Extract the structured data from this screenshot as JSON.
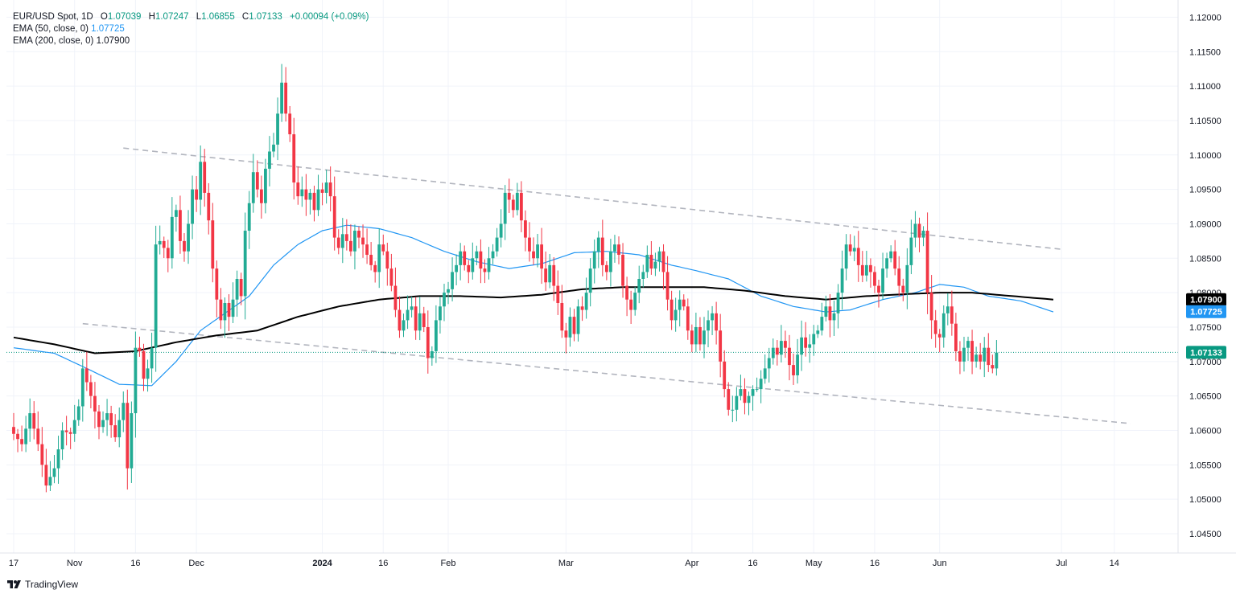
{
  "header": {
    "symbol": "EUR/USD Spot, 1D",
    "ohlc": {
      "open_label": "O",
      "open": "1.07039",
      "high_label": "H",
      "high": "1.07247",
      "low_label": "L",
      "low": "1.06855",
      "close_label": "C",
      "close": "1.07133",
      "change": "+0.00094 (+0.09%)"
    },
    "ema50_label": "EMA (50, close, 0)",
    "ema50_value": "1.07725",
    "ema200_label": "EMA (200, close, 0)",
    "ema200_value": "1.07900"
  },
  "brand": {
    "name": "TradingView"
  },
  "colors": {
    "up": "#22ab94",
    "down": "#f23645",
    "ema50": "#2196f3",
    "ema200": "#000000",
    "trend": "#b2b5be",
    "grid": "#f0f3fa",
    "text": "#131722",
    "last_price_bg": "#089981"
  },
  "chart_data": {
    "type": "candlestick",
    "y_ticks": [
      "1.12000",
      "1.11500",
      "1.11000",
      "1.10500",
      "1.10000",
      "1.09500",
      "1.09000",
      "1.08500",
      "1.08000",
      "1.07500",
      "1.07000",
      "1.06500",
      "1.06000",
      "1.05500",
      "1.05000",
      "1.04500"
    ],
    "ylim": [
      1.0422,
      1.1225
    ],
    "x_ticks": [
      {
        "label": "17",
        "day": 0
      },
      {
        "label": "Nov",
        "day": 15
      },
      {
        "label": "16",
        "day": 30
      },
      {
        "label": "Dec",
        "day": 45
      },
      {
        "label": "2024",
        "day": 76
      },
      {
        "label": "16",
        "day": 91
      },
      {
        "label": "Feb",
        "day": 107
      },
      {
        "label": "Mar",
        "day": 136
      },
      {
        "label": "Apr",
        "day": 167
      },
      {
        "label": "16",
        "day": 182
      },
      {
        "label": "May",
        "day": 197
      },
      {
        "label": "16",
        "day": 212
      },
      {
        "label": "Jun",
        "day": 228
      },
      {
        "label": "Jul",
        "day": 258
      },
      {
        "label": "14",
        "day": 271
      }
    ],
    "price_labels": [
      {
        "name": "ema200",
        "value": 1.079,
        "text": "1.07900"
      },
      {
        "name": "ema50",
        "value": 1.07725,
        "text": "1.07725"
      },
      {
        "name": "last",
        "value": 1.07133,
        "text": "1.07133"
      }
    ],
    "last_price": 1.07133,
    "close_anchors": [
      [
        0,
        1.0595
      ],
      [
        2,
        1.058
      ],
      [
        4,
        1.0625
      ],
      [
        6,
        1.058
      ],
      [
        8,
        1.052
      ],
      [
        10,
        1.0545
      ],
      [
        12,
        1.06
      ],
      [
        14,
        1.0595
      ],
      [
        16,
        1.0635
      ],
      [
        17,
        1.069
      ],
      [
        19,
        1.065
      ],
      [
        21,
        1.0605
      ],
      [
        23,
        1.0625
      ],
      [
        25,
        1.059
      ],
      [
        27,
        1.064
      ],
      [
        28,
        1.0545
      ],
      [
        29,
        1.0625
      ],
      [
        30,
        1.072
      ],
      [
        31,
        1.0715
      ],
      [
        32,
        1.0675
      ],
      [
        33,
        1.069
      ],
      [
        34,
        1.072
      ],
      [
        35,
        1.087
      ],
      [
        36,
        1.0875
      ],
      [
        37,
        1.0865
      ],
      [
        38,
        1.085
      ],
      [
        39,
        1.091
      ],
      [
        40,
        1.092
      ],
      [
        41,
        1.0875
      ],
      [
        42,
        1.086
      ],
      [
        43,
        1.09
      ],
      [
        44,
        1.095
      ],
      [
        45,
        1.0935
      ],
      [
        46,
        1.099
      ],
      [
        47,
        1.0945
      ],
      [
        48,
        1.0905
      ],
      [
        49,
        1.0835
      ],
      [
        50,
        1.079
      ],
      [
        51,
        1.076
      ],
      [
        52,
        1.0785
      ],
      [
        53,
        1.0765
      ],
      [
        54,
        1.079
      ],
      [
        55,
        1.082
      ],
      [
        56,
        1.0795
      ],
      [
        57,
        1.089
      ],
      [
        58,
        1.093
      ],
      [
        59,
        1.0975
      ],
      [
        60,
        1.095
      ],
      [
        61,
        1.093
      ],
      [
        62,
        1.098
      ],
      [
        63,
        1.1005
      ],
      [
        64,
        1.1015
      ],
      [
        65,
        1.106
      ],
      [
        66,
        1.1105
      ],
      [
        67,
        1.106
      ],
      [
        68,
        1.103
      ],
      [
        69,
        1.096
      ],
      [
        70,
        1.094
      ],
      [
        71,
        1.095
      ],
      [
        72,
        1.0935
      ],
      [
        73,
        1.0945
      ],
      [
        74,
        1.092
      ],
      [
        75,
        1.095
      ],
      [
        76,
        1.0945
      ],
      [
        77,
        1.096
      ],
      [
        78,
        1.094
      ],
      [
        79,
        1.088
      ],
      [
        80,
        1.0865
      ],
      [
        81,
        1.0885
      ],
      [
        82,
        1.0875
      ],
      [
        83,
        1.086
      ],
      [
        84,
        1.089
      ],
      [
        85,
        1.088
      ],
      [
        86,
        1.087
      ],
      [
        87,
        1.0855
      ],
      [
        88,
        1.084
      ],
      [
        89,
        1.083
      ],
      [
        90,
        1.087
      ],
      [
        91,
        1.086
      ],
      [
        92,
        1.0835
      ],
      [
        93,
        1.081
      ],
      [
        94,
        1.0775
      ],
      [
        95,
        1.0745
      ],
      [
        96,
        1.076
      ],
      [
        97,
        1.0775
      ],
      [
        98,
        1.078
      ],
      [
        99,
        1.0745
      ],
      [
        100,
        1.077
      ],
      [
        101,
        1.075
      ],
      [
        102,
        1.0705
      ],
      [
        103,
        1.0715
      ],
      [
        104,
        1.076
      ],
      [
        105,
        1.078
      ],
      [
        106,
        1.08
      ],
      [
        107,
        1.0805
      ],
      [
        108,
        1.083
      ],
      [
        109,
        1.084
      ],
      [
        110,
        1.086
      ],
      [
        111,
        1.084
      ],
      [
        112,
        1.083
      ],
      [
        113,
        1.085
      ],
      [
        114,
        1.086
      ],
      [
        115,
        1.0835
      ],
      [
        116,
        1.083
      ],
      [
        117,
        1.085
      ],
      [
        118,
        1.086
      ],
      [
        119,
        1.088
      ],
      [
        120,
        1.09
      ],
      [
        121,
        1.0945
      ],
      [
        122,
        1.0935
      ],
      [
        123,
        1.092
      ],
      [
        124,
        1.0945
      ],
      [
        125,
        1.0905
      ],
      [
        126,
        1.088
      ],
      [
        127,
        1.086
      ],
      [
        128,
        1.085
      ],
      [
        129,
        1.087
      ],
      [
        130,
        1.0835
      ],
      [
        131,
        1.0815
      ],
      [
        132,
        1.084
      ],
      [
        133,
        1.081
      ],
      [
        134,
        1.0785
      ],
      [
        135,
        1.0745
      ],
      [
        136,
        1.0735
      ],
      [
        137,
        1.0765
      ],
      [
        138,
        1.074
      ],
      [
        139,
        1.078
      ],
      [
        140,
        1.0775
      ],
      [
        141,
        1.08
      ],
      [
        142,
        1.0835
      ],
      [
        143,
        1.086
      ],
      [
        144,
        1.088
      ],
      [
        145,
        1.084
      ],
      [
        146,
        1.083
      ],
      [
        147,
        1.086
      ],
      [
        148,
        1.087
      ],
      [
        149,
        1.0855
      ],
      [
        150,
        1.081
      ],
      [
        151,
        1.079
      ],
      [
        152,
        1.0775
      ],
      [
        153,
        1.08
      ],
      [
        154,
        1.082
      ],
      [
        155,
        1.083
      ],
      [
        156,
        1.0855
      ],
      [
        157,
        1.0835
      ],
      [
        158,
        1.0845
      ],
      [
        159,
        1.086
      ],
      [
        160,
        1.083
      ],
      [
        161,
        1.079
      ],
      [
        162,
        1.076
      ],
      [
        163,
        1.0775
      ],
      [
        164,
        1.079
      ],
      [
        165,
        1.078
      ],
      [
        166,
        1.0745
      ],
      [
        167,
        1.0725
      ],
      [
        168,
        1.075
      ],
      [
        169,
        1.0725
      ],
      [
        170,
        1.0745
      ],
      [
        171,
        1.076
      ],
      [
        172,
        1.077
      ],
      [
        173,
        1.0745
      ],
      [
        174,
        1.07
      ],
      [
        175,
        1.066
      ],
      [
        176,
        1.063
      ],
      [
        177,
        1.063
      ],
      [
        178,
        1.065
      ],
      [
        179,
        1.066
      ],
      [
        180,
        1.064
      ],
      [
        181,
        1.065
      ],
      [
        182,
        1.066
      ],
      [
        183,
        1.066
      ],
      [
        184,
        1.0675
      ],
      [
        185,
        1.069
      ],
      [
        186,
        1.0705
      ],
      [
        187,
        1.072
      ],
      [
        188,
        1.071
      ],
      [
        189,
        1.073
      ],
      [
        190,
        1.072
      ],
      [
        191,
        1.0695
      ],
      [
        192,
        1.068
      ],
      [
        193,
        1.071
      ],
      [
        194,
        1.0735
      ],
      [
        195,
        1.072
      ],
      [
        196,
        1.0725
      ],
      [
        197,
        1.074
      ],
      [
        198,
        1.0745
      ],
      [
        199,
        1.0765
      ],
      [
        200,
        1.078
      ],
      [
        201,
        1.076
      ],
      [
        202,
        1.077
      ],
      [
        203,
        1.08
      ],
      [
        204,
        1.0835
      ],
      [
        205,
        1.087
      ],
      [
        206,
        1.086
      ],
      [
        207,
        1.0865
      ],
      [
        208,
        1.084
      ],
      [
        209,
        1.0825
      ],
      [
        210,
        1.084
      ],
      [
        211,
        1.083
      ],
      [
        212,
        1.081
      ],
      [
        213,
        1.08
      ],
      [
        214,
        1.0835
      ],
      [
        215,
        1.085
      ],
      [
        216,
        1.086
      ],
      [
        217,
        1.0835
      ],
      [
        218,
        1.081
      ],
      [
        219,
        1.08
      ],
      [
        220,
        1.084
      ],
      [
        221,
        1.088
      ],
      [
        222,
        1.09
      ],
      [
        223,
        1.088
      ],
      [
        224,
        1.089
      ],
      [
        225,
        1.08
      ],
      [
        226,
        1.076
      ],
      [
        227,
        1.074
      ],
      [
        228,
        1.0735
      ],
      [
        229,
        1.077
      ],
      [
        230,
        1.078
      ],
      [
        231,
        1.0755
      ],
      [
        232,
        1.0715
      ],
      [
        233,
        1.07
      ],
      [
        234,
        1.072
      ],
      [
        235,
        1.073
      ],
      [
        236,
        1.07
      ],
      [
        237,
        1.071
      ],
      [
        238,
        1.07
      ],
      [
        239,
        1.072
      ],
      [
        240,
        1.0695
      ],
      [
        241,
        1.069
      ],
      [
        242,
        1.0713
      ]
    ],
    "ema50_anchors": [
      [
        0,
        1.072
      ],
      [
        10,
        1.0712
      ],
      [
        18,
        1.069
      ],
      [
        26,
        1.0667
      ],
      [
        34,
        1.0665
      ],
      [
        40,
        1.07
      ],
      [
        46,
        1.0745
      ],
      [
        52,
        1.077
      ],
      [
        58,
        1.0795
      ],
      [
        64,
        1.084
      ],
      [
        70,
        1.087
      ],
      [
        76,
        1.089
      ],
      [
        82,
        1.0898
      ],
      [
        90,
        1.0893
      ],
      [
        98,
        1.088
      ],
      [
        106,
        1.086
      ],
      [
        114,
        1.0845
      ],
      [
        122,
        1.0835
      ],
      [
        130,
        1.0842
      ],
      [
        138,
        1.0858
      ],
      [
        146,
        1.086
      ],
      [
        154,
        1.0855
      ],
      [
        162,
        1.084
      ],
      [
        168,
        1.0832
      ],
      [
        176,
        1.082
      ],
      [
        184,
        1.0795
      ],
      [
        192,
        1.078
      ],
      [
        200,
        1.0772
      ],
      [
        206,
        1.0775
      ],
      [
        214,
        1.079
      ],
      [
        222,
        1.08
      ],
      [
        228,
        1.0812
      ],
      [
        234,
        1.0808
      ],
      [
        240,
        1.0795
      ],
      [
        248,
        1.0788
      ],
      [
        256,
        1.0772
      ]
    ],
    "ema200_anchors": [
      [
        0,
        1.0735
      ],
      [
        10,
        1.0725
      ],
      [
        20,
        1.0712
      ],
      [
        30,
        1.0715
      ],
      [
        40,
        1.0728
      ],
      [
        50,
        1.0738
      ],
      [
        60,
        1.0745
      ],
      [
        70,
        1.0765
      ],
      [
        80,
        1.078
      ],
      [
        90,
        1.079
      ],
      [
        100,
        1.0795
      ],
      [
        110,
        1.0795
      ],
      [
        120,
        1.0793
      ],
      [
        130,
        1.0797
      ],
      [
        140,
        1.0805
      ],
      [
        150,
        1.0808
      ],
      [
        160,
        1.0808
      ],
      [
        170,
        1.0808
      ],
      [
        180,
        1.0803
      ],
      [
        190,
        1.0795
      ],
      [
        200,
        1.079
      ],
      [
        210,
        1.0795
      ],
      [
        220,
        1.0798
      ],
      [
        228,
        1.08
      ],
      [
        236,
        1.08
      ],
      [
        246,
        1.0795
      ],
      [
        256,
        1.079
      ]
    ],
    "trendlines": [
      {
        "x1": 27,
        "y1": 1.101,
        "x2": 258,
        "y2": 1.0863
      },
      {
        "x1": 17,
        "y1": 1.0755,
        "x2": 275,
        "y2": 1.061
      }
    ]
  }
}
